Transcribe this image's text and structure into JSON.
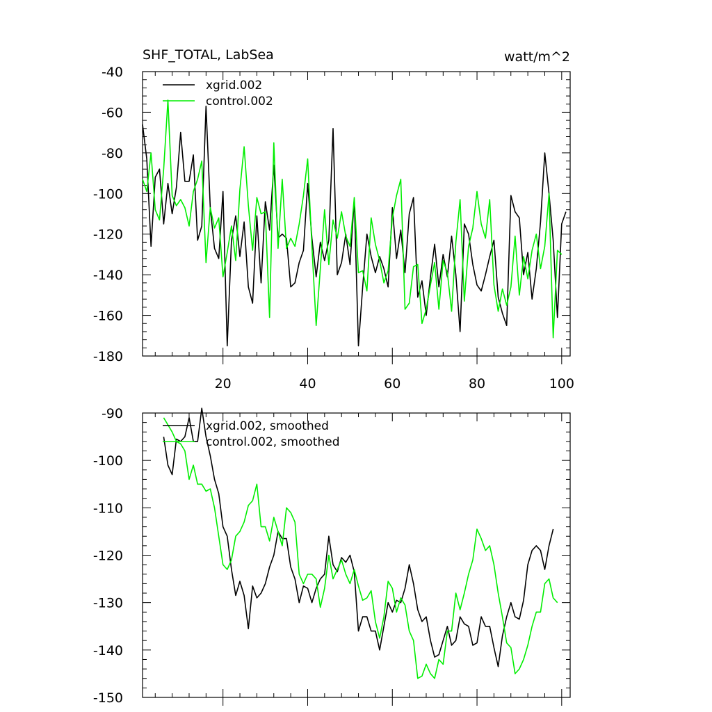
{
  "chart_data": [
    {
      "type": "line",
      "title": "SHF_TOTAL, LabSea",
      "units": "watt/m^2",
      "xlim": [
        1,
        102
      ],
      "ylim": [
        -180,
        -40
      ],
      "xticks": [
        20,
        40,
        60,
        80,
        100
      ],
      "yticks": [
        -180,
        -160,
        -140,
        -120,
        -100,
        -80,
        -60,
        -40
      ],
      "legend_position": "top-left",
      "grid": false,
      "x_start": 1,
      "series": [
        {
          "name": "xgrid.002",
          "color": "#000000",
          "values": [
            -66,
            -83,
            -126,
            -92,
            -88,
            -115,
            -95,
            -110,
            -97,
            -70,
            -94,
            -94,
            -81,
            -123,
            -116,
            -57,
            -107,
            -127,
            -132,
            -99,
            -175,
            -123,
            -111,
            -131,
            -114,
            -146,
            -154,
            -111,
            -144,
            -104,
            -118,
            -86,
            -122,
            -120,
            -122,
            -146,
            -144,
            -134,
            -128,
            -95,
            -122,
            -141,
            -124,
            -133,
            -123,
            -68,
            -140,
            -134,
            -120,
            -135,
            -103,
            -175,
            -146,
            -120,
            -131,
            -139,
            -131,
            -137,
            -146,
            -107,
            -132,
            -118,
            -139,
            -110,
            -102,
            -151,
            -143,
            -160,
            -141,
            -125,
            -146,
            -130,
            -141,
            -121,
            -140,
            -168,
            -115,
            -120,
            -135,
            -145,
            -148,
            -140,
            -131,
            -123,
            -151,
            -159,
            -165,
            -101,
            -109,
            -112,
            -140,
            -129,
            -152,
            -137,
            -114,
            -80,
            -100,
            -123,
            -161,
            -115,
            -109
          ]
        },
        {
          "name": "control.002",
          "color": "#00ee00",
          "values": [
            -93,
            -99,
            -80,
            -108,
            -113,
            -88,
            -54,
            -101,
            -106,
            -103,
            -107,
            -116,
            -99,
            -93,
            -84,
            -134,
            -107,
            -117,
            -112,
            -141,
            -129,
            -116,
            -133,
            -98,
            -77,
            -106,
            -128,
            -102,
            -110,
            -109,
            -161,
            -75,
            -127,
            -93,
            -127,
            -122,
            -126,
            -115,
            -101,
            -83,
            -126,
            -165,
            -137,
            -108,
            -135,
            -113,
            -122,
            -109,
            -121,
            -126,
            -102,
            -139,
            -138,
            -148,
            -112,
            -125,
            -133,
            -144,
            -138,
            -112,
            -101,
            -93,
            -157,
            -154,
            -136,
            -135,
            -164,
            -157,
            -145,
            -134,
            -157,
            -133,
            -139,
            -158,
            -124,
            -103,
            -153,
            -126,
            -117,
            -99,
            -115,
            -122,
            -103,
            -145,
            -158,
            -147,
            -155,
            -146,
            -121,
            -150,
            -131,
            -142,
            -128,
            -120,
            -137,
            -126,
            -100,
            -171,
            -128,
            -130
          ]
        }
      ]
    },
    {
      "type": "line",
      "title": "",
      "ylim": [
        -150,
        -90
      ],
      "xlim": [
        1,
        102
      ],
      "xticks": [
        20,
        40,
        60,
        80,
        100
      ],
      "yticks": [
        -150,
        -140,
        -130,
        -120,
        -110,
        -100,
        -90
      ],
      "legend_position": "top-left",
      "grid": false,
      "x_start": 6,
      "series": [
        {
          "name": "xgrid.002, smoothed",
          "color": "#000000",
          "values": [
            -95,
            -101,
            -103,
            -95.5,
            -96,
            -95,
            -91,
            -96,
            -96,
            -89,
            -95,
            -99,
            -104,
            -107,
            -114,
            -116,
            -123,
            -128.5,
            -125.5,
            -128.5,
            -135.5,
            -126.5,
            -129,
            -128,
            -126,
            -122.5,
            -120,
            -115,
            -116.5,
            -116.5,
            -122.5,
            -125,
            -130,
            -126.5,
            -127,
            -130,
            -127,
            -125,
            -124,
            -116,
            -122,
            -123.5,
            -120.5,
            -121.5,
            -120,
            -123.5,
            -136,
            -133,
            -133,
            -136,
            -136,
            -140,
            -135,
            -130,
            -132,
            -129.5,
            -130,
            -127,
            -122,
            -126,
            -131.5,
            -134,
            -133,
            -138,
            -141.5,
            -141,
            -138,
            -135,
            -139,
            -138,
            -133,
            -134.5,
            -135,
            -139,
            -138.5,
            -133,
            -135,
            -135,
            -139.5,
            -143.5,
            -137,
            -133,
            -130,
            -133,
            -133.5,
            -129.5,
            -122,
            -119,
            -118,
            -119,
            -123,
            -118,
            -114.5
          ]
        },
        {
          "name": "control.002, smoothed",
          "color": "#00ee00",
          "values": [
            -91,
            -92.5,
            -94,
            -96,
            -96.5,
            -98,
            -104,
            -101,
            -105,
            -105,
            -106.5,
            -106,
            -110,
            -116,
            -122,
            -123,
            -121,
            -116,
            -115,
            -113,
            -109.5,
            -108.5,
            -105,
            -114,
            -114,
            -117,
            -112,
            -115,
            -118,
            -110,
            -111,
            -113,
            -124,
            -126,
            -124,
            -124,
            -125,
            -131,
            -127,
            -120,
            -125,
            -123,
            -121,
            -124,
            -126,
            -123,
            -126.5,
            -129.5,
            -129,
            -127.5,
            -134,
            -137.5,
            -133,
            -125.5,
            -127,
            -132,
            -129,
            -130.5,
            -136,
            -138,
            -146,
            -145.5,
            -143,
            -145,
            -146,
            -142,
            -143,
            -136,
            -136,
            -128,
            -131.5,
            -128,
            -124,
            -121,
            -114.5,
            -116.5,
            -119,
            -118,
            -122,
            -128,
            -133,
            -138.5,
            -139.5,
            -145,
            -144,
            -142,
            -139,
            -135,
            -132,
            -132,
            -126,
            -125,
            -129,
            -130
          ]
        }
      ]
    }
  ]
}
